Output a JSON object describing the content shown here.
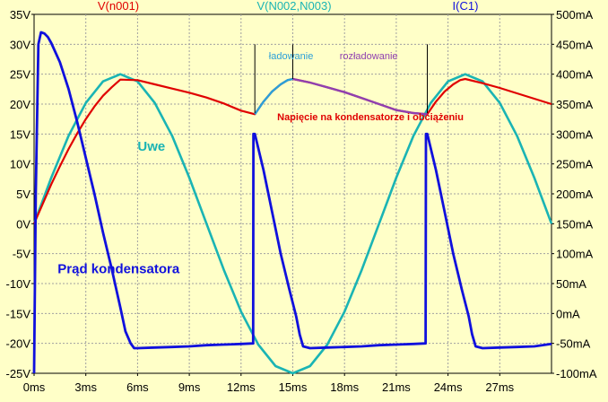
{
  "colors": {
    "background": "#ffffc8",
    "grid": "#a0a0a0",
    "axis": "#000000",
    "v_n001": "#e00000",
    "v_n002_n003": "#1ab4b4",
    "i_c1": "#1010dd",
    "label_charging": "#2b9fd8",
    "label_discharging": "#9040b0"
  },
  "chart_data": {
    "type": "line",
    "x_unit_label": "ms",
    "xlim": [
      0,
      30
    ],
    "x_ticks": [
      "0ms",
      "3ms",
      "6ms",
      "9ms",
      "12ms",
      "15ms",
      "18ms",
      "21ms",
      "24ms",
      "27ms"
    ],
    "y_left": {
      "ylim": [
        -25,
        35
      ],
      "ticks": [
        "-25V",
        "-20V",
        "-15V",
        "-10V",
        "-5V",
        "0V",
        "5V",
        "10V",
        "15V",
        "20V",
        "25V",
        "30V",
        "35V"
      ]
    },
    "y_right": {
      "ylim": [
        -100,
        500
      ],
      "ticks": [
        "-100mA",
        "-50mA",
        "0mA",
        "50mA",
        "100mA",
        "150mA",
        "200mA",
        "250mA",
        "300mA",
        "350mA",
        "400mA",
        "450mA",
        "500mA"
      ]
    },
    "grid": true,
    "legend_headers": [
      "V(n001)",
      "V(N002,N003)",
      "I(C1)"
    ],
    "series": [
      {
        "name": "V(N002,N003)",
        "axis": "left",
        "x": [
          0,
          1,
          2,
          3,
          4,
          5,
          6,
          7,
          8,
          9,
          10,
          11,
          12,
          13,
          14,
          15,
          16,
          17,
          18,
          19,
          20,
          21,
          22,
          23,
          24,
          25,
          26,
          27,
          28,
          29,
          30
        ],
        "y": [
          0,
          7.7,
          14.7,
          20.2,
          23.8,
          25,
          23.8,
          20.2,
          14.7,
          7.7,
          0,
          -7.7,
          -14.7,
          -20.2,
          -23.8,
          -25,
          -23.8,
          -20.2,
          -14.7,
          -7.7,
          0,
          7.7,
          14.7,
          20.2,
          23.8,
          25,
          23.8,
          20.2,
          14.7,
          7.7,
          0
        ]
      },
      {
        "name": "V(n001)",
        "axis": "left",
        "x": [
          0,
          0.5,
          1,
          1.5,
          2,
          2.5,
          3,
          3.5,
          4,
          4.5,
          5,
          6,
          7,
          8,
          9,
          10,
          11,
          12,
          12.8,
          13.3,
          13.8,
          14.3,
          14.7,
          15,
          16,
          17,
          18,
          19,
          20,
          21,
          22,
          22.8,
          23.3,
          23.8,
          24.3,
          24.7,
          25,
          26,
          27,
          28,
          29,
          30
        ],
        "y": [
          0,
          3.3,
          6.6,
          9.6,
          12.5,
          15.1,
          17.5,
          19.6,
          21.4,
          22.8,
          24.1,
          24,
          23.3,
          22.6,
          21.9,
          21.1,
          20.1,
          18.9,
          18.3,
          20.4,
          22.1,
          23.3,
          24,
          24.2,
          23.6,
          22.8,
          22,
          21,
          20,
          19,
          18.5,
          18.3,
          20.4,
          22.1,
          23.3,
          24,
          24.2,
          23.5,
          22.7,
          21.8,
          20.9,
          20
        ]
      },
      {
        "name": "I(C1)",
        "axis": "right",
        "x": [
          0,
          0.1,
          0.25,
          0.4,
          0.6,
          0.8,
          1,
          1.5,
          2,
          2.5,
          3,
          3.5,
          4,
          4.5,
          5,
          5.3,
          5.6,
          5.8,
          6,
          7,
          8,
          9,
          10,
          11,
          12,
          12.7,
          12.72,
          12.8,
          13.3,
          13.8,
          14.3,
          14.8,
          15.2,
          15.4,
          15.6,
          16,
          17,
          18,
          19,
          20,
          21,
          22,
          22.7,
          22.72,
          22.8,
          23.3,
          23.8,
          24.3,
          24.8,
          25.2,
          25.4,
          25.6,
          26,
          27,
          28,
          29,
          30
        ],
        "y": [
          -100,
          200,
          450,
          470,
          468,
          462,
          452,
          420,
          375,
          320,
          260,
          200,
          135,
          75,
          10,
          -30,
          -50,
          -58,
          -58,
          -57,
          -56,
          -55,
          -53,
          -52,
          -51,
          -50,
          300,
          300,
          240,
          170,
          100,
          40,
          -5,
          -35,
          -55,
          -58,
          -57,
          -56,
          -55,
          -53,
          -52,
          -51,
          -50,
          300,
          300,
          240,
          170,
          100,
          40,
          -5,
          -35,
          -55,
          -58,
          -57,
          -56,
          -55,
          -51
        ]
      }
    ],
    "annotations": [
      {
        "text": "ładowanie",
        "x": 14.9,
        "y": 27.5
      },
      {
        "text": "rozładowanie",
        "x": 19.4,
        "y": 27.5
      },
      {
        "text": "Napięcie na kondensatorze i  obciążeniu",
        "x": 19.5,
        "y": 17.3
      },
      {
        "text": "Uwe",
        "x": 6.8,
        "y": 12.2
      },
      {
        "text": "Prąd kondensatora",
        "x": 4.9,
        "y": -8.3
      }
    ],
    "markers": [
      {
        "x": 12.8,
        "y1": 18.5,
        "y2": 30
      },
      {
        "x": 15,
        "y1": 24.2,
        "y2": 30
      },
      {
        "x": 22.8,
        "y1": 18.5,
        "y2": 30
      }
    ]
  }
}
